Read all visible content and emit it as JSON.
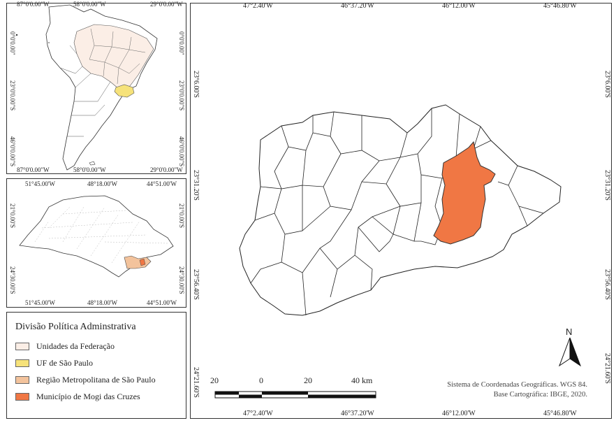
{
  "south_america_inset": {
    "top_labels": [
      "87°0'0.00\"W",
      "58°0'0.00\"W",
      "29°0'0.00\"W"
    ],
    "bottom_labels": [
      "87°0'0.00\"W",
      "58°0'0.00\"W",
      "29°0'0.00\"W"
    ],
    "left_labels": [
      "0°0'0.00\"",
      "23°0'0.00\"S",
      "46°0'0.00\"S"
    ],
    "right_labels": [
      "0°0'0.00\"",
      "23°0'0.00\"S",
      "46°0'0.00\"S"
    ]
  },
  "sao_paulo_inset": {
    "top_labels": [
      "51°45.00'W",
      "48°18.00'W",
      "44°51.00'W"
    ],
    "bottom_labels": [
      "51°45.00'W",
      "48°18.00'W",
      "44°51.00'W"
    ],
    "left_labels": [
      "21°0.00'S",
      "24°30.00'S"
    ],
    "right_labels": [
      "21°0.00'S",
      "24°30.00'S"
    ]
  },
  "main_map": {
    "top_labels": [
      "47°2.40'W",
      "46°37.20'W",
      "46°12.00'W",
      "45°46.80'W"
    ],
    "bottom_labels": [
      "47°2.40'W",
      "46°37.20'W",
      "46°12.00'W",
      "45°46.80'W"
    ],
    "left_labels": [
      "23°6.00'S",
      "23°31.20'S",
      "23°56.40'S",
      "24°21.60'S"
    ],
    "right_labels": [
      "23°6.00'S",
      "23°31.20'S",
      "23°56.40'S",
      "24°21.60'S"
    ],
    "north_label": "N",
    "scale_labels": [
      "20",
      "0",
      "20",
      "40 km"
    ],
    "credit_line1": "Sistema de Coordenadas Geográficas. WGS 84.",
    "credit_line2": "Base Cartográfica: IBGE, 2020."
  },
  "legend": {
    "title": "Divisão Política Adminstrativa",
    "items": [
      {
        "label": "Unidades da Federação",
        "color": "#fbeee6"
      },
      {
        "label": "UF de São Paulo",
        "color": "#f6e27a"
      },
      {
        "label": "Região Metropolitana de São Paulo",
        "color": "#f3c39c"
      },
      {
        "label": "Município de Mogi das Cruzes",
        "color": "#f07744"
      }
    ]
  }
}
